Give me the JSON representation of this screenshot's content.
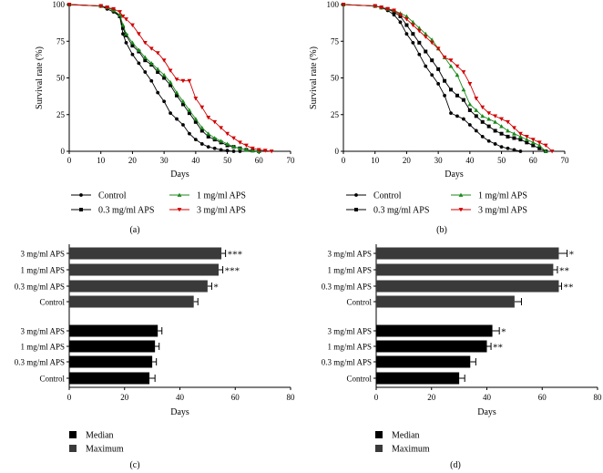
{
  "chart_data": [
    {
      "panel": "(a)",
      "type": "line",
      "xlabel": "Days",
      "ylabel": "Survival rate (%)",
      "xlim": [
        0,
        70
      ],
      "ylim": [
        0,
        100
      ],
      "xticks": [
        "0",
        "10",
        "20",
        "30",
        "40",
        "50",
        "60",
        "70"
      ],
      "yticks": [
        "0",
        "25",
        "50",
        "75",
        "100"
      ],
      "series": [
        {
          "name": "Control",
          "marker": "circle",
          "color": "#000000",
          "x": [
            0,
            10,
            12,
            14,
            16,
            17,
            18,
            20,
            22,
            24,
            26,
            28,
            30,
            32,
            34,
            36,
            38,
            40,
            42,
            44,
            46,
            48,
            50,
            52,
            54
          ],
          "y": [
            100,
            99,
            97,
            95,
            92,
            80,
            74,
            66,
            60,
            54,
            48,
            40,
            34,
            26,
            22,
            18,
            12,
            8,
            5,
            3,
            2,
            1,
            0.5,
            0,
            0
          ]
        },
        {
          "name": "0.3 mg/ml APS",
          "marker": "square",
          "color": "#000000",
          "x": [
            0,
            10,
            12,
            14,
            16,
            17,
            18,
            20,
            22,
            24,
            26,
            28,
            30,
            32,
            34,
            36,
            38,
            40,
            42,
            44,
            46,
            48,
            50,
            52,
            54,
            56,
            58,
            60
          ],
          "y": [
            100,
            99,
            98,
            96,
            92,
            84,
            79,
            72,
            68,
            62,
            59,
            54,
            50,
            45,
            38,
            32,
            26,
            20,
            14,
            10,
            8,
            6,
            4,
            3,
            2,
            1,
            0.5,
            0
          ]
        },
        {
          "name": "1 mg/ml APS",
          "marker": "triangle",
          "color": "#1b8a1b",
          "x": [
            0,
            10,
            12,
            14,
            16,
            17,
            18,
            20,
            22,
            24,
            26,
            28,
            30,
            32,
            34,
            36,
            38,
            40,
            42,
            44,
            46,
            48,
            50,
            52,
            54,
            56,
            58,
            60
          ],
          "y": [
            100,
            99,
            98,
            96,
            93,
            86,
            80,
            74,
            69,
            64,
            60,
            56,
            52,
            47,
            40,
            34,
            28,
            22,
            16,
            12,
            9,
            7,
            5,
            3,
            2,
            1,
            0.5,
            0
          ]
        },
        {
          "name": "3 mg/ml APS",
          "marker": "triangle-down",
          "color": "#d00000",
          "x": [
            0,
            10,
            12,
            14,
            16,
            17,
            18,
            20,
            22,
            24,
            26,
            28,
            30,
            32,
            34,
            36,
            38,
            40,
            42,
            44,
            46,
            48,
            50,
            52,
            54,
            56,
            58,
            60,
            62,
            64
          ],
          "y": [
            100,
            99,
            98,
            97,
            95,
            92,
            90,
            86,
            80,
            74,
            70,
            67,
            62,
            55,
            49,
            48,
            48,
            36,
            30,
            23,
            20,
            16,
            12,
            9,
            6,
            4,
            2,
            1,
            0.5,
            0
          ]
        }
      ]
    },
    {
      "panel": "(b)",
      "type": "line",
      "xlabel": "Days",
      "ylabel": "Survival rate (%)",
      "xlim": [
        0,
        70
      ],
      "ylim": [
        0,
        100
      ],
      "xticks": [
        "0",
        "10",
        "20",
        "30",
        "40",
        "50",
        "60",
        "70"
      ],
      "yticks": [
        "0",
        "25",
        "50",
        "75",
        "100"
      ],
      "series": [
        {
          "name": "Control",
          "marker": "circle",
          "color": "#000000",
          "x": [
            0,
            10,
            12,
            14,
            16,
            18,
            20,
            22,
            24,
            26,
            28,
            30,
            32,
            34,
            36,
            38,
            40,
            42,
            44,
            46,
            48,
            50,
            52,
            54,
            56
          ],
          "y": [
            100,
            99,
            98,
            96,
            93,
            88,
            80,
            74,
            66,
            58,
            52,
            46,
            38,
            26,
            24,
            22,
            18,
            14,
            10,
            7,
            5,
            3,
            2,
            1,
            0
          ]
        },
        {
          "name": "0.3 mg/ml APS",
          "marker": "square",
          "color": "#000000",
          "x": [
            0,
            10,
            12,
            14,
            16,
            18,
            20,
            22,
            24,
            26,
            28,
            30,
            32,
            34,
            36,
            38,
            40,
            42,
            44,
            46,
            48,
            50,
            52,
            54,
            56,
            58,
            60,
            62,
            64
          ],
          "y": [
            100,
            99,
            98,
            97,
            95,
            92,
            86,
            80,
            74,
            68,
            62,
            56,
            48,
            42,
            38,
            35,
            28,
            24,
            20,
            17,
            14,
            12,
            10,
            9,
            8,
            6,
            4,
            2,
            0
          ]
        },
        {
          "name": "1 mg/ml APS",
          "marker": "triangle",
          "color": "#1b8a1b",
          "x": [
            0,
            10,
            12,
            14,
            16,
            18,
            20,
            22,
            24,
            26,
            28,
            30,
            32,
            34,
            36,
            38,
            40,
            42,
            44,
            46,
            48,
            50,
            52,
            54,
            56,
            58,
            60,
            62,
            64
          ],
          "y": [
            100,
            99,
            98,
            97,
            96,
            94,
            92,
            88,
            84,
            80,
            76,
            70,
            64,
            58,
            52,
            42,
            32,
            28,
            24,
            22,
            20,
            17,
            14,
            12,
            10,
            8,
            6,
            4,
            0
          ]
        },
        {
          "name": "3 mg/ml APS",
          "marker": "triangle-down",
          "color": "#d00000",
          "x": [
            0,
            10,
            12,
            14,
            16,
            18,
            20,
            22,
            24,
            26,
            28,
            30,
            32,
            34,
            36,
            38,
            40,
            42,
            44,
            46,
            48,
            50,
            52,
            54,
            56,
            58,
            60,
            62,
            64,
            66
          ],
          "y": [
            100,
            99,
            98,
            97,
            96,
            93,
            90,
            86,
            82,
            78,
            74,
            70,
            64,
            62,
            58,
            54,
            46,
            36,
            30,
            26,
            24,
            22,
            20,
            16,
            12,
            10,
            8,
            6,
            4,
            0
          ]
        }
      ]
    },
    {
      "panel": "(c)",
      "type": "bar",
      "orientation": "horizontal",
      "xlabel": "Days",
      "xlim": [
        0,
        80
      ],
      "xticks": [
        "0",
        "20",
        "40",
        "60",
        "80"
      ],
      "groups": [
        {
          "name": "Maximum",
          "color": "#3a3a3a",
          "categories": [
            "3 mg/ml APS",
            "1 mg/ml APS",
            "0.3 mg/ml APS",
            "Control"
          ],
          "values": [
            55,
            54,
            50,
            45
          ],
          "errors": [
            1.5,
            1.5,
            1.5,
            1.5
          ],
          "significance": [
            "***",
            "***",
            "*",
            ""
          ]
        },
        {
          "name": "Median",
          "color": "#000000",
          "categories": [
            "3 mg/ml APS",
            "1 mg/ml APS",
            "0.3 mg/ml APS",
            "Control"
          ],
          "values": [
            32,
            31,
            30,
            29
          ],
          "errors": [
            1.5,
            1.5,
            1.5,
            2
          ],
          "significance": [
            "",
            "",
            "",
            ""
          ]
        }
      ],
      "legend": [
        "Median",
        "Maximum"
      ]
    },
    {
      "panel": "(d)",
      "type": "bar",
      "orientation": "horizontal",
      "xlabel": "Days",
      "xlim": [
        0,
        80
      ],
      "xticks": [
        "0",
        "20",
        "40",
        "60",
        "80"
      ],
      "groups": [
        {
          "name": "Maximum",
          "color": "#3a3a3a",
          "categories": [
            "3 mg/ml APS",
            "1 mg/ml APS",
            "0.3 mg/ml APS",
            "Control"
          ],
          "values": [
            66,
            64,
            66,
            50
          ],
          "errors": [
            3,
            1.5,
            1,
            2.5
          ],
          "significance": [
            "*",
            "**",
            "**",
            ""
          ]
        },
        {
          "name": "Median",
          "color": "#000000",
          "categories": [
            "3 mg/ml APS",
            "1 mg/ml APS",
            "0.3 mg/ml APS",
            "Control"
          ],
          "values": [
            42,
            40,
            34,
            30
          ],
          "errors": [
            2.5,
            1.5,
            2,
            2
          ],
          "significance": [
            "*",
            "**",
            "",
            ""
          ]
        }
      ],
      "legend": [
        "Median",
        "Maximum"
      ]
    }
  ]
}
